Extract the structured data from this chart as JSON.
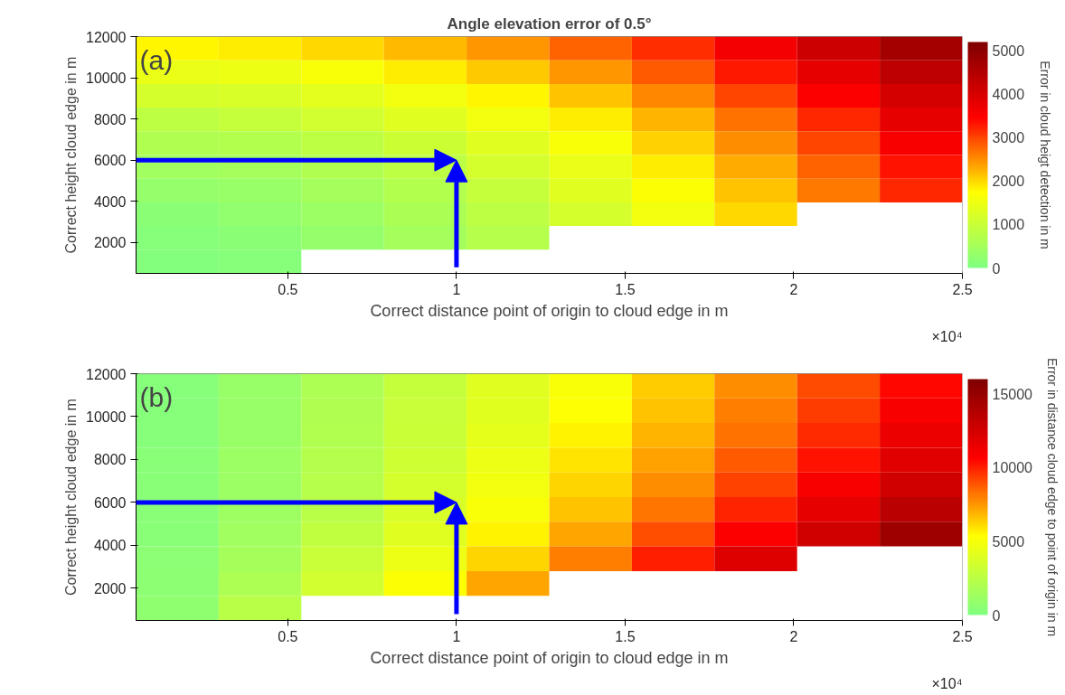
{
  "chart_data": [
    {
      "type": "heatmap",
      "title": "Angle elevation error of 0.5°",
      "xlabel": "Correct distance point of origin to cloud edge in m",
      "ylabel": "Correct height cloud edge in m",
      "clabel": "Error in cloud heigt detection in m",
      "annotations": [
        "(a)",
        "×10⁴"
      ],
      "x": [
        0.1725,
        0.4175,
        0.6625,
        0.9075,
        1.1525,
        1.3975,
        1.6425,
        1.8875,
        2.1325,
        2.3775
      ],
      "y": [
        11425,
        10275,
        9125,
        7975,
        6825,
        5675,
        4525,
        3375,
        2225,
        1075
      ],
      "cells": [
        [
          1800,
          1850,
          2000,
          2200,
          2450,
          2800,
          3150,
          3600,
          4150,
          4700
        ],
        [
          1450,
          1500,
          1650,
          1850,
          2100,
          2450,
          2850,
          3300,
          3800,
          4350
        ],
        [
          1150,
          1200,
          1350,
          1550,
          1800,
          2150,
          2550,
          3000,
          3500,
          4050
        ],
        [
          850,
          950,
          1100,
          1300,
          1550,
          1850,
          2250,
          2700,
          3200,
          3800
        ],
        [
          650,
          700,
          850,
          1050,
          1300,
          1650,
          2050,
          2500,
          3000,
          3550
        ],
        [
          450,
          500,
          650,
          850,
          1150,
          1450,
          1850,
          2300,
          2800,
          3350
        ],
        [
          300,
          350,
          500,
          700,
          950,
          1300,
          1700,
          2150,
          2650,
          3200
        ],
        [
          150,
          250,
          400,
          600,
          850,
          1150,
          1550,
          2000,
          null,
          null
        ],
        [
          100,
          150,
          300,
          500,
          750,
          null,
          null,
          null,
          null,
          null
        ],
        [
          50,
          100,
          null,
          null,
          null,
          null,
          null,
          null,
          null,
          null
        ]
      ],
      "colors": [
        "#80ff80",
        "#ffff00",
        "#ff0000",
        "#800000"
      ],
      "clim": [
        0,
        5200
      ],
      "cticks": [
        0,
        1000,
        2000,
        3000,
        4000,
        5000
      ],
      "xlim": [
        0.05,
        2.5
      ],
      "xticks": [
        0.5,
        1,
        1.5,
        2,
        2.5
      ],
      "ylim": [
        500,
        12000
      ],
      "yticks": [
        2000,
        4000,
        6000,
        8000,
        10000,
        12000
      ]
    },
    {
      "type": "heatmap",
      "xlabel": "Correct distance point of origin to cloud edge in m",
      "ylabel": "Correct height cloud edge in m",
      "clabel": "Error in distance cloud edge to point of origin in m",
      "annotations": [
        "(b)",
        "×10⁴"
      ],
      "x": [
        0.1725,
        0.4175,
        0.6625,
        0.9075,
        1.1525,
        1.3975,
        1.6425,
        1.8875,
        2.1325,
        2.3775
      ],
      "y": [
        11425,
        10275,
        9125,
        7975,
        6825,
        5675,
        4525,
        3375,
        2225,
        1075
      ],
      "cells": [
        [
          300,
          1000,
          1900,
          2900,
          4000,
          5100,
          6400,
          7700,
          9100,
          10500
        ],
        [
          300,
          1100,
          2000,
          3000,
          4100,
          5300,
          6600,
          8000,
          9400,
          10900
        ],
        [
          300,
          1100,
          2100,
          3100,
          4300,
          5600,
          6900,
          8300,
          9800,
          11400
        ],
        [
          400,
          1200,
          2200,
          3300,
          4500,
          5900,
          7300,
          8800,
          10300,
          11900
        ],
        [
          400,
          1200,
          2300,
          3500,
          4800,
          6200,
          7700,
          9300,
          10900,
          12600
        ],
        [
          400,
          1300,
          2400,
          3700,
          5100,
          6600,
          8200,
          9900,
          11700,
          13500
        ],
        [
          400,
          1400,
          2700,
          4000,
          5600,
          7200,
          9000,
          10800,
          12700,
          14700
        ],
        [
          500,
          1600,
          3000,
          4500,
          6200,
          8000,
          10000,
          12000,
          null,
          null
        ],
        [
          600,
          1900,
          3400,
          5200,
          7200,
          null,
          null,
          null,
          null,
          null
        ],
        [
          700,
          2400,
          null,
          null,
          null,
          null,
          null,
          null,
          null,
          null
        ]
      ],
      "colors": [
        "#80ff80",
        "#ffff00",
        "#ff0000",
        "#800000"
      ],
      "clim": [
        0,
        16000
      ],
      "cticks": [
        0,
        5000,
        10000,
        15000
      ],
      "xlim": [
        0.05,
        2.5
      ],
      "xticks": [
        0.5,
        1,
        1.5,
        2,
        2.5
      ],
      "ylim": [
        500,
        12000
      ],
      "yticks": [
        2000,
        4000,
        6000,
        8000,
        10000,
        12000
      ]
    }
  ]
}
